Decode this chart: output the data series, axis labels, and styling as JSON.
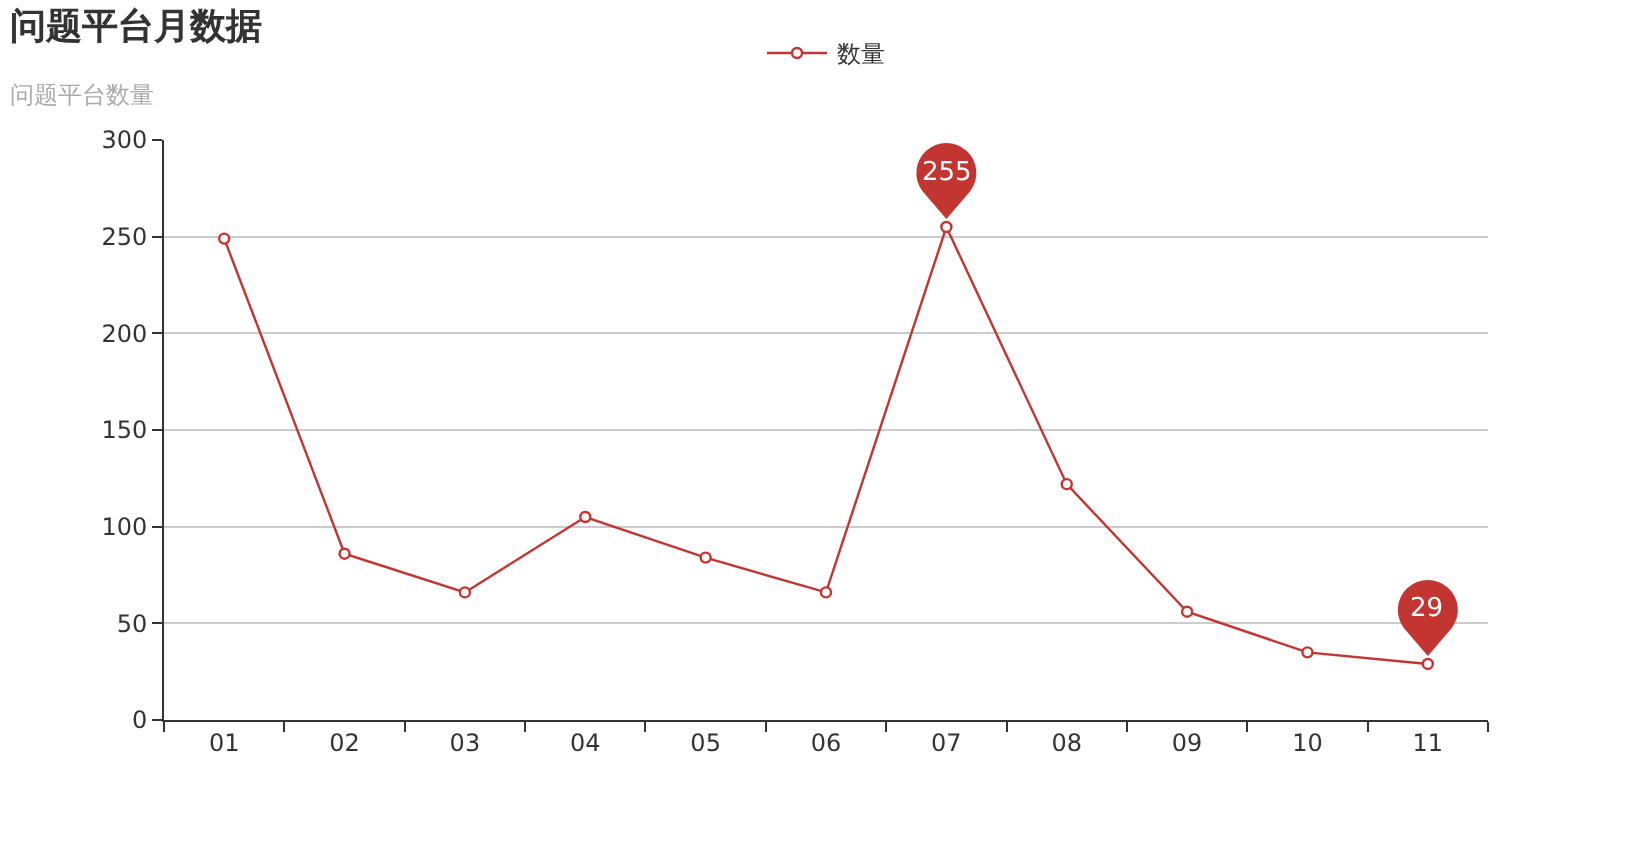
{
  "chart_data": {
    "type": "line",
    "title": "问题平台月数据",
    "subtitle": "问题平台数量",
    "categories": [
      "01",
      "02",
      "03",
      "04",
      "05",
      "06",
      "07",
      "08",
      "09",
      "10",
      "11"
    ],
    "series": [
      {
        "name": "数量",
        "color": "#c23531",
        "values": [
          249,
          86,
          66,
          105,
          84,
          66,
          255,
          122,
          56,
          35,
          29
        ],
        "value_labels": [
          null,
          null,
          null,
          null,
          null,
          null,
          "255",
          null,
          null,
          null,
          "29"
        ]
      }
    ],
    "ylim": [
      0,
      300
    ],
    "yticks": [
      0,
      50,
      100,
      150,
      200,
      250,
      300
    ],
    "grid": "y",
    "legend": "top",
    "marker": "circle",
    "line_style": "solid"
  }
}
